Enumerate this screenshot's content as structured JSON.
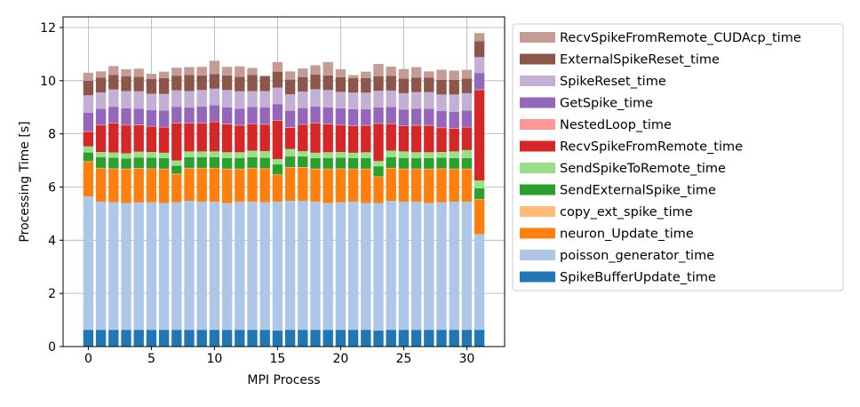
{
  "chart_data": {
    "type": "bar",
    "stacked": true,
    "title": "",
    "xlabel": "MPI Process",
    "ylabel": "Processing Time [s]",
    "xlim": [
      -2,
      33
    ],
    "ylim": [
      0,
      12.4
    ],
    "xticks": [
      0,
      5,
      10,
      15,
      20,
      25,
      30
    ],
    "yticks": [
      0,
      2,
      4,
      6,
      8,
      10,
      12
    ],
    "grid": true,
    "legend_position": "outside-right",
    "x": [
      0,
      1,
      2,
      3,
      4,
      5,
      6,
      7,
      8,
      9,
      10,
      11,
      12,
      13,
      14,
      15,
      16,
      17,
      18,
      19,
      20,
      21,
      22,
      23,
      24,
      25,
      26,
      27,
      28,
      29,
      30,
      31
    ],
    "series": [
      {
        "name": "SpikeBufferUpdate_time",
        "color": "#1f77b4",
        "values": [
          0.63,
          0.63,
          0.63,
          0.63,
          0.63,
          0.63,
          0.63,
          0.63,
          0.63,
          0.63,
          0.63,
          0.63,
          0.63,
          0.63,
          0.63,
          0.6,
          0.63,
          0.63,
          0.63,
          0.63,
          0.63,
          0.63,
          0.63,
          0.6,
          0.63,
          0.63,
          0.63,
          0.63,
          0.63,
          0.63,
          0.63,
          0.63
        ]
      },
      {
        "name": "poisson_generator_time",
        "color": "#aec7e8",
        "values": [
          5.02,
          4.82,
          4.8,
          4.77,
          4.79,
          4.8,
          4.77,
          4.8,
          4.85,
          4.82,
          4.82,
          4.77,
          4.82,
          4.82,
          4.8,
          4.85,
          4.85,
          4.85,
          4.82,
          4.77,
          4.8,
          4.82,
          4.77,
          4.8,
          4.85,
          4.82,
          4.82,
          4.77,
          4.8,
          4.82,
          4.82,
          3.6
        ]
      },
      {
        "name": "neuron_Update_time",
        "color": "#ff7f0e",
        "values": [
          1.3,
          1.25,
          1.25,
          1.27,
          1.27,
          1.25,
          1.27,
          1.05,
          1.22,
          1.25,
          1.25,
          1.27,
          1.22,
          1.25,
          1.25,
          1.0,
          1.25,
          1.25,
          1.22,
          1.27,
          1.25,
          1.22,
          1.27,
          0.98,
          1.22,
          1.22,
          1.22,
          1.27,
          1.25,
          1.22,
          1.22,
          1.3
        ]
      },
      {
        "name": "copy_ext_spike_time",
        "color": "#ffbb78",
        "values": [
          0.02,
          0.02,
          0.02,
          0.02,
          0.02,
          0.02,
          0.02,
          0.02,
          0.02,
          0.02,
          0.02,
          0.02,
          0.02,
          0.02,
          0.02,
          0.02,
          0.02,
          0.02,
          0.02,
          0.02,
          0.02,
          0.02,
          0.02,
          0.02,
          0.02,
          0.02,
          0.02,
          0.02,
          0.02,
          0.02,
          0.02,
          0.02
        ]
      },
      {
        "name": "SendExternalSpike_time",
        "color": "#2ca02c",
        "values": [
          0.33,
          0.4,
          0.4,
          0.38,
          0.4,
          0.4,
          0.4,
          0.3,
          0.4,
          0.4,
          0.4,
          0.4,
          0.4,
          0.4,
          0.4,
          0.38,
          0.4,
          0.4,
          0.4,
          0.4,
          0.4,
          0.4,
          0.4,
          0.38,
          0.4,
          0.4,
          0.4,
          0.4,
          0.4,
          0.4,
          0.4,
          0.4
        ]
      },
      {
        "name": "SendSpikeToRemote_time",
        "color": "#98df8a",
        "values": [
          0.23,
          0.2,
          0.2,
          0.2,
          0.22,
          0.22,
          0.2,
          0.2,
          0.22,
          0.22,
          0.22,
          0.22,
          0.22,
          0.25,
          0.25,
          0.2,
          0.28,
          0.2,
          0.2,
          0.22,
          0.22,
          0.2,
          0.22,
          0.2,
          0.25,
          0.25,
          0.22,
          0.22,
          0.22,
          0.25,
          0.3,
          0.3
        ]
      },
      {
        "name": "RecvSpikeFromRemote_time",
        "color": "#d62728",
        "values": [
          0.55,
          1.0,
          1.1,
          1.05,
          1.0,
          0.95,
          0.95,
          1.4,
          1.05,
          1.05,
          1.1,
          1.05,
          1.0,
          1.0,
          1.0,
          1.45,
          0.8,
          1.0,
          1.1,
          1.05,
          1.0,
          1.0,
          1.0,
          1.4,
          1.0,
          0.95,
          1.0,
          1.0,
          0.9,
          0.85,
          0.85,
          3.4
        ]
      },
      {
        "name": "NestedLoop_time",
        "color": "#ff9896",
        "values": [
          0.02,
          0.02,
          0.02,
          0.02,
          0.02,
          0.02,
          0.02,
          0.02,
          0.02,
          0.02,
          0.02,
          0.02,
          0.02,
          0.02,
          0.02,
          0.02,
          0.02,
          0.02,
          0.02,
          0.02,
          0.02,
          0.02,
          0.02,
          0.02,
          0.02,
          0.02,
          0.02,
          0.02,
          0.02,
          0.02,
          0.02,
          0.02
        ]
      },
      {
        "name": "GetSpike_time",
        "color": "#9467bd",
        "values": [
          0.7,
          0.6,
          0.6,
          0.62,
          0.6,
          0.6,
          0.62,
          0.6,
          0.58,
          0.62,
          0.62,
          0.62,
          0.62,
          0.62,
          0.62,
          0.6,
          0.62,
          0.6,
          0.62,
          0.62,
          0.62,
          0.62,
          0.6,
          0.6,
          0.62,
          0.6,
          0.62,
          0.62,
          0.62,
          0.62,
          0.62,
          0.62
        ]
      },
      {
        "name": "SpikeReset_time",
        "color": "#c5b0d5",
        "values": [
          0.65,
          0.62,
          0.65,
          0.65,
          0.65,
          0.62,
          0.62,
          0.62,
          0.62,
          0.62,
          0.62,
          0.65,
          0.65,
          0.6,
          0.62,
          0.62,
          0.62,
          0.62,
          0.65,
          0.65,
          0.62,
          0.62,
          0.62,
          0.62,
          0.62,
          0.62,
          0.62,
          0.62,
          0.62,
          0.65,
          0.65,
          0.6
        ]
      },
      {
        "name": "ExternalSpikeReset_time",
        "color": "#8c564b",
        "values": [
          0.55,
          0.55,
          0.55,
          0.55,
          0.55,
          0.55,
          0.6,
          0.55,
          0.6,
          0.55,
          0.55,
          0.55,
          0.55,
          0.6,
          0.55,
          0.6,
          0.55,
          0.55,
          0.55,
          0.55,
          0.55,
          0.55,
          0.55,
          0.55,
          0.55,
          0.55,
          0.55,
          0.55,
          0.55,
          0.55,
          0.55,
          0.6
        ]
      },
      {
        "name": "RecvSpikeFromRemote_CUDAcp_time",
        "color": "#c49c94",
        "values": [
          0.3,
          0.24,
          0.33,
          0.27,
          0.3,
          0.2,
          0.24,
          0.3,
          0.3,
          0.32,
          0.5,
          0.32,
          0.39,
          0.27,
          0.03,
          0.36,
          0.31,
          0.32,
          0.35,
          0.5,
          0.3,
          0.11,
          0.24,
          0.46,
          0.35,
          0.36,
          0.39,
          0.23,
          0.38,
          0.35,
          0.33,
          0.3
        ]
      }
    ]
  }
}
